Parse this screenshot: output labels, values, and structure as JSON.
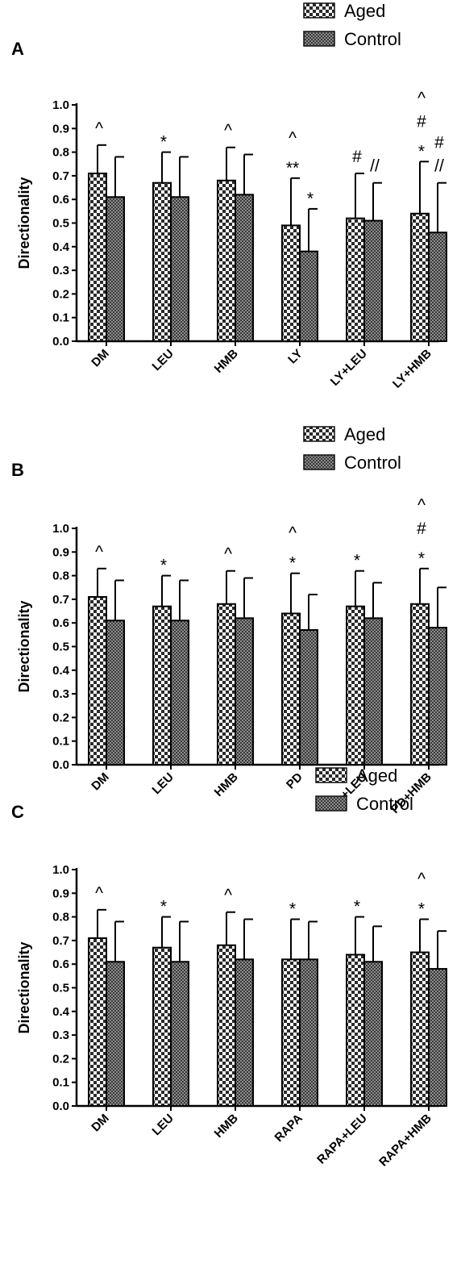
{
  "legend": {
    "aged": "Aged",
    "control": "Control"
  },
  "chart_data": [
    {
      "type": "bar",
      "panel": "A",
      "ylabel": "Directionality",
      "ylim": [
        0,
        1.0
      ],
      "yticks": [
        "0.0",
        "0.1",
        "0.2",
        "0.3",
        "0.4",
        "0.5",
        "0.6",
        "0.7",
        "0.8",
        "0.9",
        "1.0"
      ],
      "categories": [
        "DM",
        "LEU",
        "HMB",
        "LY",
        "LY+LEU",
        "LY+HMB"
      ],
      "series": [
        {
          "name": "Aged",
          "values": [
            0.71,
            0.67,
            0.68,
            0.49,
            0.52,
            0.54
          ],
          "error": [
            0.12,
            0.13,
            0.14,
            0.2,
            0.19,
            0.22
          ]
        },
        {
          "name": "Control",
          "values": [
            0.61,
            0.61,
            0.62,
            0.38,
            0.51,
            0.46
          ],
          "error": [
            0.17,
            0.17,
            0.17,
            0.18,
            0.16,
            0.21
          ]
        }
      ],
      "annotations": [
        {
          "category": 0,
          "series": 0,
          "labels": [
            "^"
          ]
        },
        {
          "category": 1,
          "series": 0,
          "labels": [
            "*"
          ]
        },
        {
          "category": 2,
          "series": 0,
          "labels": [
            "^"
          ]
        },
        {
          "category": 3,
          "series": 0,
          "labels": [
            "^",
            "**"
          ]
        },
        {
          "category": 3,
          "series": 1,
          "labels": [
            "*"
          ]
        },
        {
          "category": 4,
          "series": 0,
          "labels": [
            "#"
          ]
        },
        {
          "category": 4,
          "series": 1,
          "labels": [
            "//"
          ]
        },
        {
          "category": 5,
          "series": 0,
          "labels": [
            "^",
            "#",
            "*"
          ]
        },
        {
          "category": 5,
          "series": 1,
          "labels": [
            "#",
            "//"
          ]
        }
      ]
    },
    {
      "type": "bar",
      "panel": "B",
      "ylabel": "Directionality",
      "ylim": [
        0,
        1.0
      ],
      "yticks": [
        "0.0",
        "0.1",
        "0.2",
        "0.3",
        "0.4",
        "0.5",
        "0.6",
        "0.7",
        "0.8",
        "0.9",
        "1.0"
      ],
      "categories": [
        "DM",
        "LEU",
        "HMB",
        "PD",
        "PD+LEU",
        "PD+HMB"
      ],
      "series": [
        {
          "name": "Aged",
          "values": [
            0.71,
            0.67,
            0.68,
            0.64,
            0.67,
            0.68
          ],
          "error": [
            0.12,
            0.13,
            0.14,
            0.17,
            0.15,
            0.15
          ]
        },
        {
          "name": "Control",
          "values": [
            0.61,
            0.61,
            0.62,
            0.57,
            0.62,
            0.58
          ],
          "error": [
            0.17,
            0.17,
            0.17,
            0.15,
            0.15,
            0.17
          ]
        }
      ],
      "annotations": [
        {
          "category": 0,
          "series": 0,
          "labels": [
            "^"
          ]
        },
        {
          "category": 1,
          "series": 0,
          "labels": [
            "*"
          ]
        },
        {
          "category": 2,
          "series": 0,
          "labels": [
            "^"
          ]
        },
        {
          "category": 3,
          "series": 0,
          "labels": [
            "^",
            "*"
          ]
        },
        {
          "category": 4,
          "series": 0,
          "labels": [
            "*"
          ]
        },
        {
          "category": 5,
          "series": 0,
          "labels": [
            "^",
            "#",
            "*"
          ]
        }
      ]
    },
    {
      "type": "bar",
      "panel": "C",
      "ylabel": "Directionality",
      "ylim": [
        0,
        1.0
      ],
      "yticks": [
        "0.0",
        "0.1",
        "0.2",
        "0.3",
        "0.4",
        "0.5",
        "0.6",
        "0.7",
        "0.8",
        "0.9",
        "1.0"
      ],
      "categories": [
        "DM",
        "LEU",
        "HMB",
        "RAPA",
        "RAPA+LEU",
        "RAPA+HMB"
      ],
      "series": [
        {
          "name": "Aged",
          "values": [
            0.71,
            0.67,
            0.68,
            0.62,
            0.64,
            0.65
          ],
          "error": [
            0.12,
            0.13,
            0.14,
            0.17,
            0.16,
            0.14
          ]
        },
        {
          "name": "Control",
          "values": [
            0.61,
            0.61,
            0.62,
            0.62,
            0.61,
            0.58
          ],
          "error": [
            0.17,
            0.17,
            0.17,
            0.16,
            0.15,
            0.16
          ]
        }
      ],
      "annotations": [
        {
          "category": 0,
          "series": 0,
          "labels": [
            "^"
          ]
        },
        {
          "category": 1,
          "series": 0,
          "labels": [
            "*"
          ]
        },
        {
          "category": 2,
          "series": 0,
          "labels": [
            "^"
          ]
        },
        {
          "category": 3,
          "series": 0,
          "labels": [
            "*"
          ]
        },
        {
          "category": 4,
          "series": 0,
          "labels": [
            "*"
          ]
        },
        {
          "category": 5,
          "series": 0,
          "labels": [
            "^",
            "*"
          ]
        }
      ]
    }
  ]
}
